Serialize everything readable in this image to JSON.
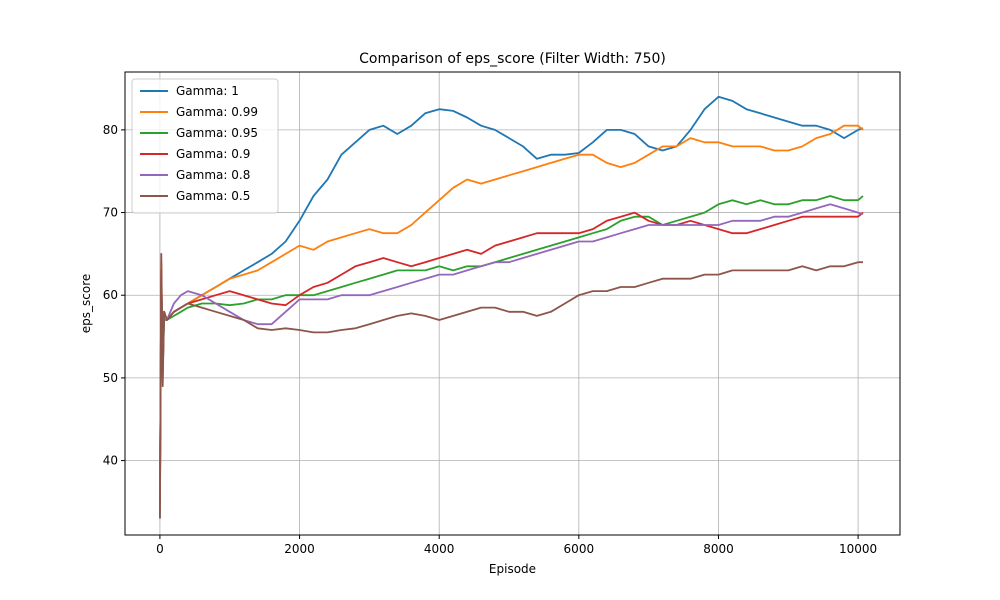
{
  "chart_data": {
    "type": "line",
    "title": "Comparison of eps_score (Filter Width: 750)",
    "xlabel": "Episode",
    "ylabel": "eps_score",
    "xlim": [
      -500,
      10600
    ],
    "ylim": [
      31,
      87
    ],
    "xticks": [
      0,
      2000,
      4000,
      6000,
      8000,
      10000
    ],
    "yticks": [
      40,
      50,
      60,
      70,
      80
    ],
    "grid": true,
    "legend_position": "top-left",
    "series": [
      {
        "name": "Gamma: 1",
        "color": "#1f77b4",
        "x": [
          0,
          20,
          40,
          60,
          100,
          200,
          300,
          400,
          600,
          800,
          1000,
          1200,
          1400,
          1600,
          1800,
          2000,
          2200,
          2400,
          2600,
          2800,
          3000,
          3200,
          3400,
          3600,
          3800,
          4000,
          4200,
          4400,
          4600,
          4800,
          5000,
          5200,
          5400,
          5600,
          5800,
          6000,
          6200,
          6400,
          6600,
          6800,
          7000,
          7200,
          7400,
          7600,
          7800,
          8000,
          8200,
          8400,
          8600,
          8800,
          9000,
          9200,
          9400,
          9600,
          9800,
          10000,
          10070
        ],
        "y": [
          33,
          63,
          50,
          58,
          57,
          58,
          58.5,
          59,
          60,
          61,
          62,
          63,
          64,
          65,
          66.5,
          69,
          72,
          74,
          77,
          78.5,
          80,
          80.5,
          79.5,
          80.5,
          82,
          82.5,
          82.3,
          81.5,
          80.5,
          80,
          79,
          78,
          76.5,
          77,
          77,
          77.2,
          78.5,
          80,
          80,
          79.5,
          78,
          77.5,
          78,
          80,
          82.5,
          84,
          83.5,
          82.5,
          82,
          81.5,
          81,
          80.5,
          80.5,
          80,
          79,
          80,
          80.2
        ]
      },
      {
        "name": "Gamma: 0.99",
        "color": "#ff7f0e",
        "x": [
          0,
          20,
          40,
          60,
          100,
          200,
          300,
          400,
          600,
          800,
          1000,
          1200,
          1400,
          1600,
          1800,
          2000,
          2200,
          2400,
          2600,
          2800,
          3000,
          3200,
          3400,
          3600,
          3800,
          4000,
          4200,
          4400,
          4600,
          4800,
          5000,
          5200,
          5400,
          5600,
          5800,
          6000,
          6200,
          6400,
          6600,
          6800,
          7000,
          7200,
          7400,
          7600,
          7800,
          8000,
          8200,
          8400,
          8600,
          8800,
          9000,
          9200,
          9400,
          9600,
          9800,
          10000,
          10070
        ],
        "y": [
          34,
          64,
          52,
          58,
          57,
          58,
          58.5,
          59,
          60,
          61,
          62,
          62.5,
          63,
          64,
          65,
          66,
          65.5,
          66.5,
          67,
          67.5,
          68,
          67.5,
          67.5,
          68.5,
          70,
          71.5,
          73,
          74,
          73.5,
          74,
          74.5,
          75,
          75.5,
          76,
          76.5,
          77,
          77,
          76,
          75.5,
          76,
          77,
          78,
          78,
          79,
          78.5,
          78.5,
          78,
          78,
          78,
          77.5,
          77.5,
          78,
          79,
          79.5,
          80.5,
          80.5,
          80
        ]
      },
      {
        "name": "Gamma: 0.95",
        "color": "#2ca02c",
        "x": [
          0,
          20,
          40,
          60,
          100,
          200,
          300,
          400,
          600,
          800,
          1000,
          1200,
          1400,
          1600,
          1800,
          2000,
          2200,
          2400,
          2600,
          2800,
          3000,
          3200,
          3400,
          3600,
          3800,
          4000,
          4200,
          4400,
          4600,
          4800,
          5000,
          5200,
          5400,
          5600,
          5800,
          6000,
          6200,
          6400,
          6600,
          6800,
          7000,
          7200,
          7400,
          7600,
          7800,
          8000,
          8200,
          8400,
          8600,
          8800,
          9000,
          9200,
          9400,
          9600,
          9800,
          10000,
          10070
        ],
        "y": [
          35,
          62,
          51,
          57,
          57,
          57.5,
          58,
          58.5,
          59,
          59,
          58.8,
          59,
          59.5,
          59.5,
          60,
          60,
          60,
          60.5,
          61,
          61.5,
          62,
          62.5,
          63,
          63,
          63,
          63.5,
          63,
          63.5,
          63.5,
          64,
          64.5,
          65,
          65.5,
          66,
          66.5,
          67,
          67.5,
          68,
          69,
          69.5,
          69.5,
          68.5,
          69,
          69.5,
          70,
          71,
          71.5,
          71,
          71.5,
          71,
          71,
          71.5,
          71.5,
          72,
          71.5,
          71.5,
          72
        ]
      },
      {
        "name": "Gamma: 0.9",
        "color": "#d62728",
        "x": [
          0,
          20,
          40,
          60,
          100,
          200,
          300,
          400,
          600,
          800,
          1000,
          1200,
          1400,
          1600,
          1800,
          2000,
          2200,
          2400,
          2600,
          2800,
          3000,
          3200,
          3400,
          3600,
          3800,
          4000,
          4200,
          4400,
          4600,
          4800,
          5000,
          5200,
          5400,
          5600,
          5800,
          6000,
          6200,
          6400,
          6600,
          6800,
          7000,
          7200,
          7400,
          7600,
          7800,
          8000,
          8200,
          8400,
          8600,
          8800,
          9000,
          9200,
          9400,
          9600,
          9800,
          10000,
          10070
        ],
        "y": [
          35,
          63,
          51,
          58,
          57,
          58,
          58.5,
          59,
          59.5,
          60,
          60.5,
          60,
          59.5,
          59,
          58.8,
          60,
          61,
          61.5,
          62.5,
          63.5,
          64,
          64.5,
          64,
          63.5,
          64,
          64.5,
          65,
          65.5,
          65,
          66,
          66.5,
          67,
          67.5,
          67.5,
          67.5,
          67.5,
          68,
          69,
          69.5,
          70,
          69,
          68.5,
          68.5,
          69,
          68.5,
          68,
          67.5,
          67.5,
          68,
          68.5,
          69,
          69.5,
          69.5,
          69.5,
          69.5,
          69.5,
          70
        ]
      },
      {
        "name": "Gamma: 0.8",
        "color": "#9467bd",
        "x": [
          0,
          20,
          40,
          60,
          100,
          200,
          300,
          400,
          600,
          800,
          1000,
          1200,
          1400,
          1600,
          1800,
          2000,
          2200,
          2400,
          2600,
          2800,
          3000,
          3200,
          3400,
          3600,
          3800,
          4000,
          4200,
          4400,
          4600,
          4800,
          5000,
          5200,
          5400,
          5600,
          5800,
          6000,
          6200,
          6400,
          6600,
          6800,
          7000,
          7200,
          7400,
          7600,
          7800,
          8000,
          8200,
          8400,
          8600,
          8800,
          9000,
          9200,
          9400,
          9600,
          9800,
          10000,
          10070
        ],
        "y": [
          35,
          62,
          52,
          58,
          57,
          59,
          60,
          60.5,
          60,
          59,
          58,
          57,
          56.5,
          56.5,
          58,
          59.5,
          59.5,
          59.5,
          60,
          60,
          60,
          60.5,
          61,
          61.5,
          62,
          62.5,
          62.5,
          63,
          63.5,
          64,
          64,
          64.5,
          65,
          65.5,
          66,
          66.5,
          66.5,
          67,
          67.5,
          68,
          68.5,
          68.5,
          68.5,
          68.5,
          68.5,
          68.5,
          69,
          69,
          69,
          69.5,
          69.5,
          70,
          70.5,
          71,
          70.5,
          70,
          69.8
        ]
      },
      {
        "name": "Gamma: 0.5",
        "color": "#8c564b",
        "x": [
          0,
          20,
          40,
          60,
          100,
          200,
          300,
          400,
          600,
          800,
          1000,
          1200,
          1400,
          1600,
          1800,
          2000,
          2200,
          2400,
          2600,
          2800,
          3000,
          3200,
          3400,
          3600,
          3800,
          4000,
          4200,
          4400,
          4600,
          4800,
          5000,
          5200,
          5400,
          5600,
          5800,
          6000,
          6200,
          6400,
          6600,
          6800,
          7000,
          7200,
          7400,
          7600,
          7800,
          8000,
          8200,
          8400,
          8600,
          8800,
          9000,
          9200,
          9400,
          9600,
          9800,
          10000,
          10070
        ],
        "y": [
          33,
          65,
          49,
          58,
          57,
          58,
          58.5,
          59,
          58.5,
          58,
          57.5,
          57,
          56,
          55.8,
          56,
          55.8,
          55.5,
          55.5,
          55.8,
          56,
          56.5,
          57,
          57.5,
          57.8,
          57.5,
          57,
          57.5,
          58,
          58.5,
          58.5,
          58,
          58,
          57.5,
          58,
          59,
          60,
          60.5,
          60.5,
          61,
          61,
          61.5,
          62,
          62,
          62,
          62.5,
          62.5,
          63,
          63,
          63,
          63,
          63,
          63.5,
          63,
          63.5,
          63.5,
          64,
          64
        ]
      }
    ]
  }
}
